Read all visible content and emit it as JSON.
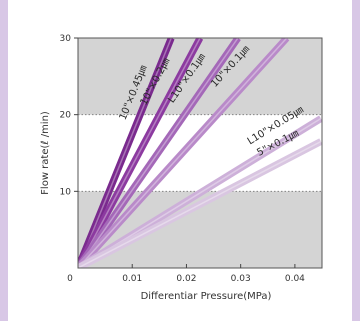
{
  "chart_data": {
    "type": "line",
    "xlabel": "Differentiar Pressure(MPa)",
    "ylabel": "Flow rate(ℓ /min)",
    "xlim": [
      0,
      0.045
    ],
    "ylim": [
      0,
      30
    ],
    "x_ticks": [
      "0",
      "0.01",
      "0.02",
      "0.03",
      "0.04"
    ],
    "x_tick_values": [
      0,
      0.01,
      0.02,
      0.03,
      0.04
    ],
    "y_ticks": [
      "10",
      "20",
      "30"
    ],
    "y_tick_values": [
      10,
      20,
      30
    ],
    "grid": "dotted horizontal lines at 10 and 20; shaded bands 0–10 and 20–30",
    "colors": {
      "band": "#d4d4d4",
      "frame": "#555555",
      "page_border": "#d8c7e6"
    },
    "series": [
      {
        "name": "10\"×0.45㎛",
        "x": [
          0,
          0.0172
        ],
        "y": [
          0,
          30
        ],
        "color": "#7a2a8e"
      },
      {
        "name": "10\"×0.2㎛",
        "x": [
          0,
          0.0225
        ],
        "y": [
          0,
          30
        ],
        "color": "#8c3aa0"
      },
      {
        "name": "L10\"×0.1㎛",
        "x": [
          0,
          0.0295
        ],
        "y": [
          0,
          30
        ],
        "color": "#a468b8"
      },
      {
        "name": "10\"×0.1㎛",
        "x": [
          0,
          0.0385
        ],
        "y": [
          0,
          30
        ],
        "color": "#b98ac9"
      },
      {
        "name": "L10\"×0.05㎛",
        "x": [
          0,
          0.0448
        ],
        "y": [
          0,
          19.5
        ],
        "color": "#cdb0d9"
      },
      {
        "name": "5\"×0.1㎛",
        "x": [
          0,
          0.0448
        ],
        "y": [
          0,
          16.5
        ],
        "color": "#d9c6e1"
      }
    ]
  }
}
